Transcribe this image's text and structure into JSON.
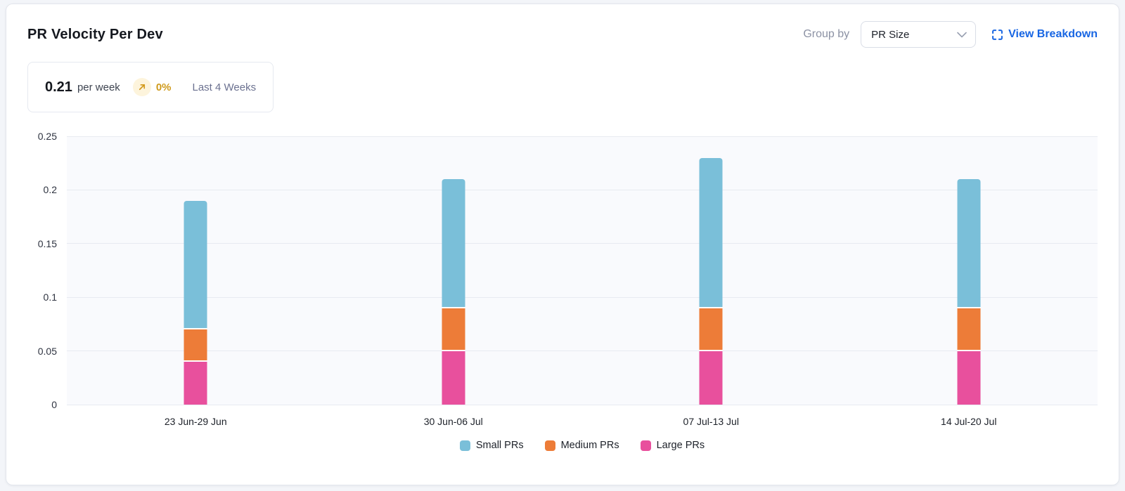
{
  "card": {
    "title": "PR Velocity Per Dev",
    "controls": {
      "group_by_label": "Group by",
      "group_by_value": "PR Size",
      "view_breakdown_label": "View Breakdown"
    },
    "stat": {
      "value": "0.21",
      "unit": "per week",
      "delta": "0%",
      "period": "Last 4 Weeks"
    }
  },
  "chart_data": {
    "type": "bar",
    "stacked": true,
    "title": "PR Velocity Per Dev",
    "categories": [
      "23 Jun-29 Jun",
      "30 Jun-06 Jul",
      "07 Jul-13 Jul",
      "14 Jul-20 Jul"
    ],
    "series": [
      {
        "name": "Small PRs",
        "color": "#7abfd9",
        "values": [
          0.12,
          0.12,
          0.14,
          0.12
        ]
      },
      {
        "name": "Medium PRs",
        "color": "#ed7c38",
        "values": [
          0.03,
          0.04,
          0.04,
          0.04
        ]
      },
      {
        "name": "Large PRs",
        "color": "#e8509d",
        "values": [
          0.04,
          0.05,
          0.05,
          0.05
        ]
      }
    ],
    "stack_order_bottom_to_top": [
      "Large PRs",
      "Medium PRs",
      "Small PRs"
    ],
    "stack_totals": [
      0.19,
      0.21,
      0.23,
      0.21
    ],
    "xlabel": "",
    "ylabel": "",
    "ylim": [
      0,
      0.25
    ],
    "yticks": [
      "0",
      "0.05",
      "0.1",
      "0.15",
      "0.2",
      "0.25"
    ],
    "grid": true,
    "legend_position": "bottom",
    "plot_background": "#f9fafd"
  },
  "colors": {
    "accent_link": "#1866e3",
    "delta_amber": "#cf9a1b",
    "delta_badge_bg": "#fdf4dc",
    "gridline": "#e8eaf1",
    "card_border": "#e3e6ed",
    "page_background": "#f3f5f9"
  }
}
